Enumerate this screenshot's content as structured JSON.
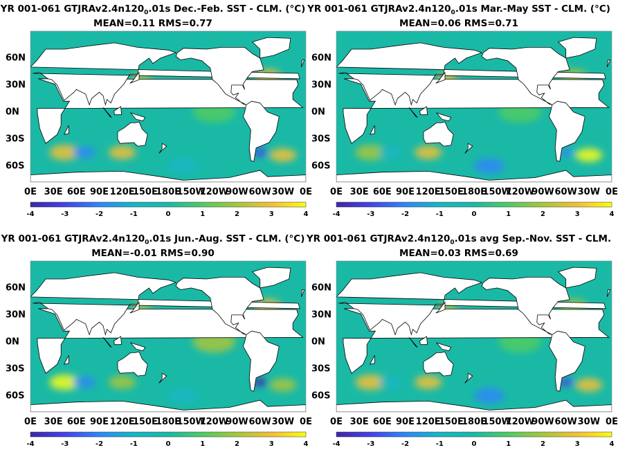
{
  "chart_data": [
    {
      "type": "heatmap",
      "title_prefix": "YR 001-061 GTJRAv2.4n120",
      "title_sub": "0",
      "title_suffix": ".01s  Dec.-Feb. SST - CLM. (",
      "units": "°C)",
      "stats": "MEAN=0.11   RMS=0.77",
      "lat_ticks": [
        "60N",
        "30N",
        "0N",
        "30S",
        "60S"
      ],
      "lon_ticks": [
        "0E",
        "30E",
        "60E",
        "90E",
        "120E",
        "150E",
        "180E",
        "150W",
        "120W",
        "90W",
        "60W",
        "30W",
        "0E"
      ],
      "colorbar_ticks": [
        "-4",
        "-3",
        "-2",
        "-1",
        "0",
        "1",
        "2",
        "3",
        "4"
      ],
      "color_range": [
        -4,
        4
      ],
      "mean": 0.11,
      "rms": 0.77
    },
    {
      "type": "heatmap",
      "title_prefix": "YR 001-061 GTJRAv2.4n120",
      "title_sub": "0",
      "title_suffix": ".01s  Mar.-May SST - CLM. (",
      "units": "°C)",
      "stats": "MEAN=0.06   RMS=0.71",
      "lat_ticks": [
        "60N",
        "30N",
        "0N",
        "30S",
        "60S"
      ],
      "lon_ticks": [
        "0E",
        "30E",
        "60E",
        "90E",
        "120E",
        "150E",
        "180E",
        "150W",
        "120W",
        "90W",
        "60W",
        "30W",
        "0E"
      ],
      "colorbar_ticks": [
        "-4",
        "-3",
        "-2",
        "-1",
        "0",
        "1",
        "2",
        "3",
        "4"
      ],
      "color_range": [
        -4,
        4
      ],
      "mean": 0.06,
      "rms": 0.71
    },
    {
      "type": "heatmap",
      "title_prefix": "YR 001-061 GTJRAv2.4n120",
      "title_sub": "0",
      "title_suffix": ".01s  Jun.-Aug. SST - CLM. (",
      "units": "°C)",
      "stats": "MEAN=-0.01   RMS=0.90",
      "lat_ticks": [
        "60N",
        "30N",
        "0N",
        "30S",
        "60S"
      ],
      "lon_ticks": [
        "0E",
        "30E",
        "60E",
        "90E",
        "120E",
        "150E",
        "180E",
        "150W",
        "120W",
        "90W",
        "60W",
        "30W",
        "0E"
      ],
      "colorbar_ticks": [
        "-4",
        "-3",
        "-2",
        "-1",
        "0",
        "1",
        "2",
        "3",
        "4"
      ],
      "color_range": [
        -4,
        4
      ],
      "mean": -0.01,
      "rms": 0.9
    },
    {
      "type": "heatmap",
      "title_prefix": "YR 001-061 GTJRAv2.4n120",
      "title_sub": "0",
      "title_suffix": ".01s avg Sep.-Nov. SST - CLM.",
      "units": "",
      "stats": "MEAN=0.03   RMS=0.69",
      "lat_ticks": [
        "60N",
        "30N",
        "0N",
        "30S",
        "60S"
      ],
      "lon_ticks": [
        "0E",
        "30E",
        "60E",
        "90E",
        "120E",
        "150E",
        "180E",
        "150W",
        "120W",
        "90W",
        "60W",
        "30W",
        "0E"
      ],
      "colorbar_ticks": [
        "-4",
        "-3",
        "-2",
        "-1",
        "0",
        "1",
        "2",
        "3",
        "4"
      ],
      "color_range": [
        -4,
        4
      ],
      "mean": 0.03,
      "rms": 0.69
    }
  ],
  "colormap": [
    "#3e26a8",
    "#4443e8",
    "#2e87f7",
    "#16b6c4",
    "#1ab9a6",
    "#4fcb64",
    "#a7c63c",
    "#f3c036",
    "#f9fb15"
  ]
}
